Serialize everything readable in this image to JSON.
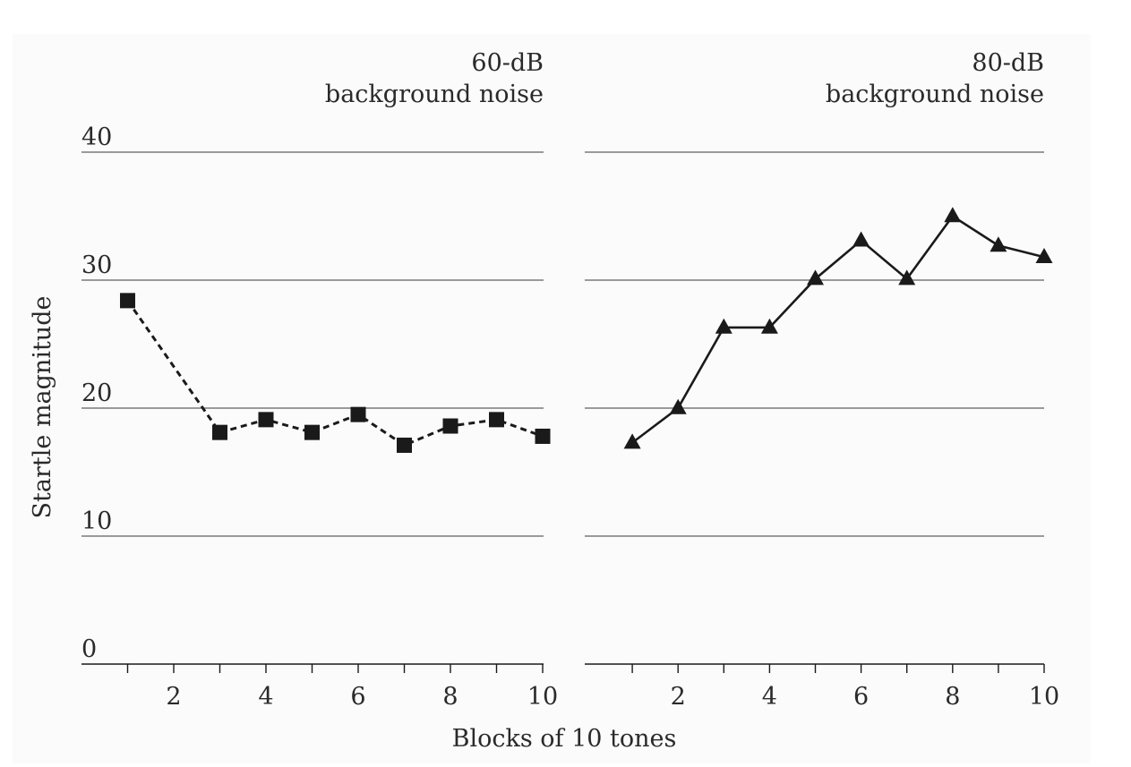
{
  "chart_data": {
    "type": "line",
    "ylabel": "Startle magnitude",
    "xlabel": "Blocks of 10 tones",
    "ylim": [
      0,
      40
    ],
    "yticks": [
      0,
      10,
      20,
      30,
      40
    ],
    "xlim": [
      0,
      10
    ],
    "xtick_labels": [
      2,
      4,
      6,
      8,
      10
    ],
    "grid": true,
    "colors": {
      "line": "#1a1a1a",
      "grid": "#7a7a7a",
      "text": "#2a2a2a"
    },
    "panels": [
      {
        "title_line1": "60-dB",
        "title_line2": "background noise",
        "series": {
          "marker": "square",
          "line_style": "dashed",
          "x": [
            1,
            3,
            4,
            5,
            6,
            7,
            8,
            9,
            10
          ],
          "y": [
            28.4,
            18.1,
            19.1,
            18.1,
            19.5,
            17.1,
            18.6,
            19.1,
            17.8
          ]
        }
      },
      {
        "title_line1": "80-dB",
        "title_line2": "background noise",
        "series": {
          "marker": "triangle",
          "line_style": "solid",
          "x": [
            1,
            2,
            3,
            4,
            5,
            6,
            7,
            8,
            9,
            10
          ],
          "y": [
            17.3,
            20.0,
            26.3,
            26.3,
            30.1,
            33.1,
            30.1,
            35.0,
            32.7,
            31.8
          ]
        }
      }
    ]
  }
}
